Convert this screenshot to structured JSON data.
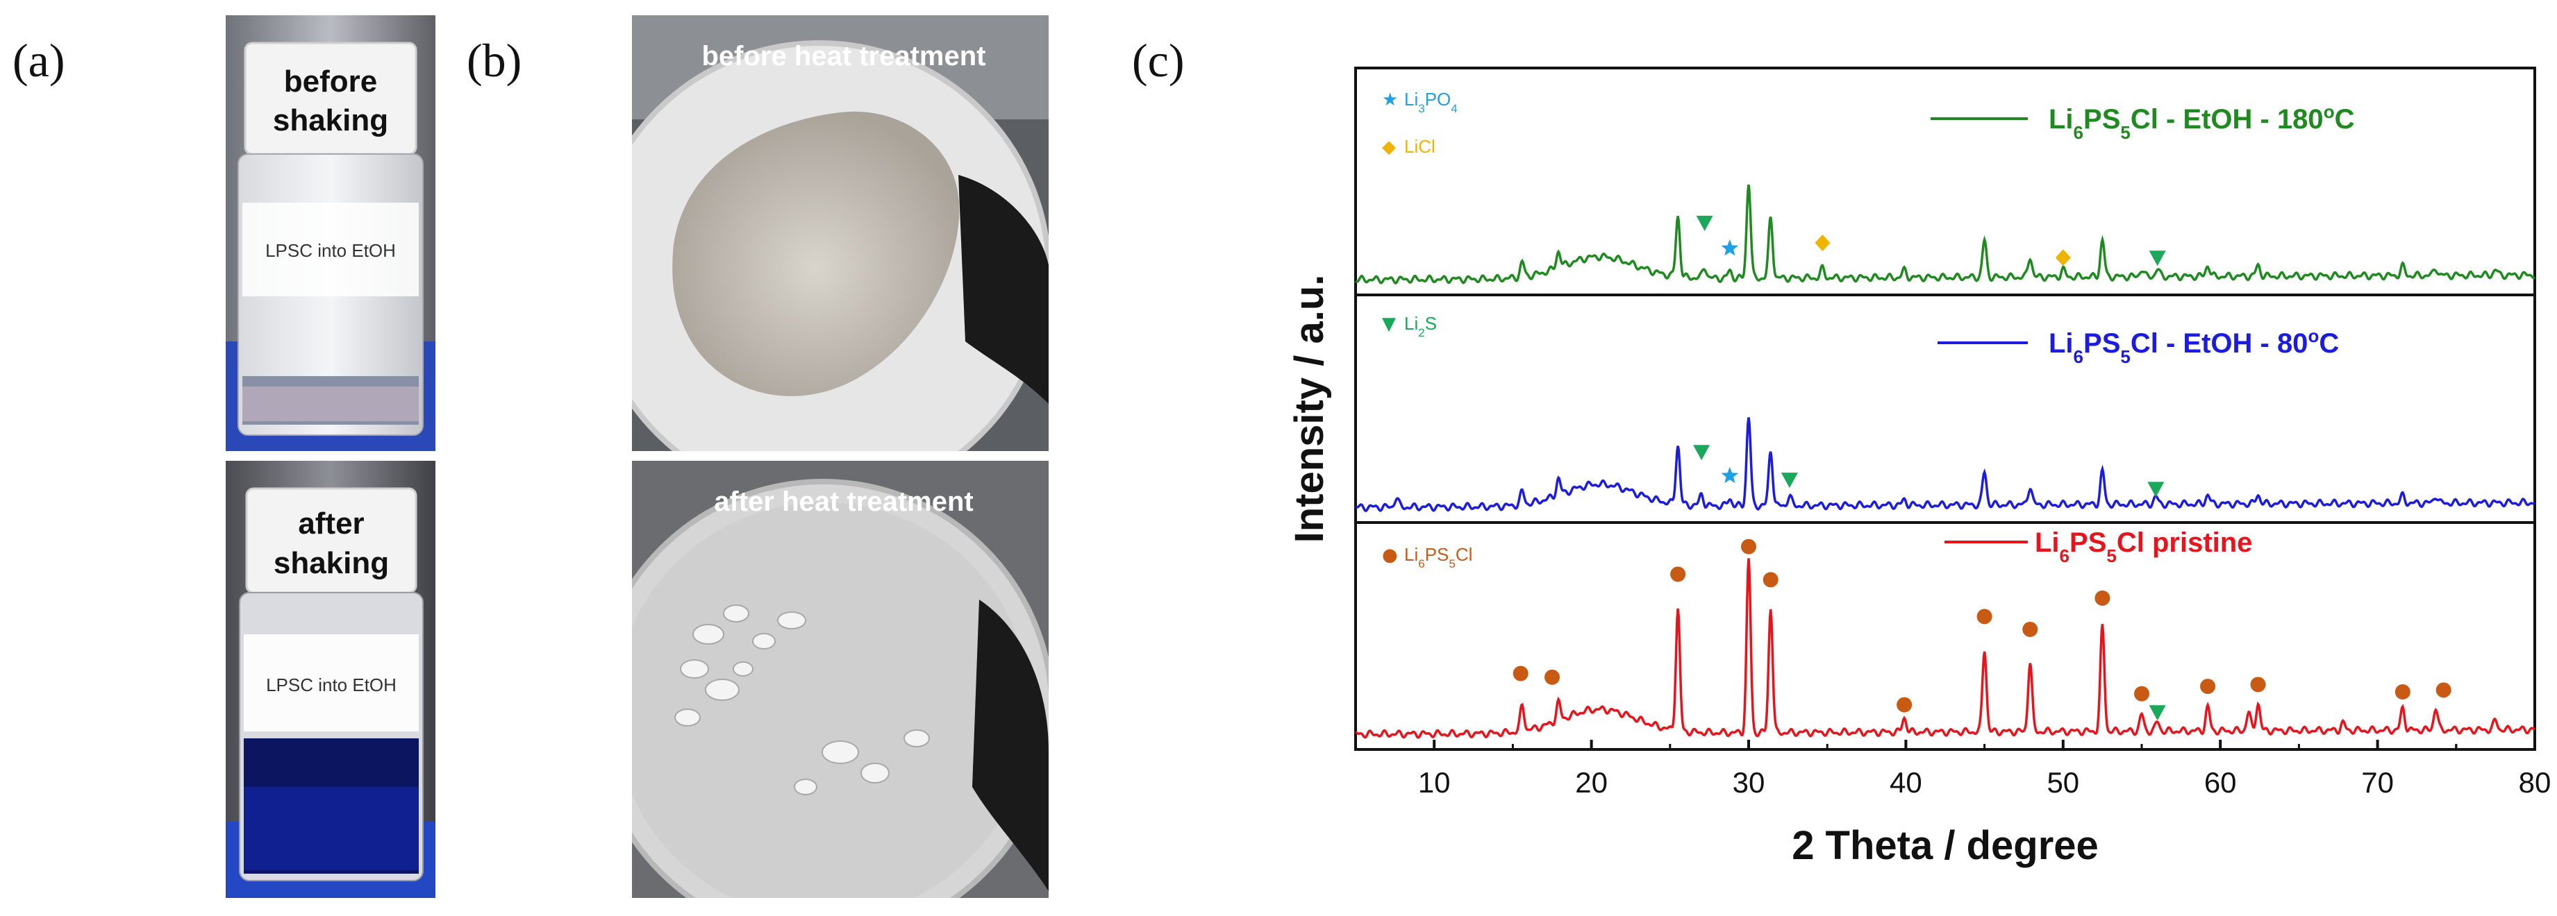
{
  "panels": {
    "a": {
      "label": "(a)",
      "top_photo": {
        "caption": [
          "before",
          "shaking"
        ],
        "vial_label": "LPSC into EtOH"
      },
      "bottom_photo": {
        "caption": [
          "after",
          "shaking"
        ],
        "vial_label": "LPSC into EtOH"
      }
    },
    "b": {
      "label": "(b)",
      "top_photo": {
        "caption": "before heat treatment"
      },
      "bottom_photo": {
        "caption": "after heat treatment"
      }
    },
    "c": {
      "label": "(c)"
    }
  },
  "colors": {
    "green": "#1f8a1f",
    "blue": "#1c1ce0",
    "red": "#e8141c",
    "li3po4": "#1ea0e6",
    "licl": "#f0b400",
    "li2s": "#1aa85a",
    "lpsc_marker": "#c85a14"
  },
  "chart_data": {
    "type": "line",
    "xlabel": "2 Theta / degree",
    "ylabel": "Intensity / a.u.",
    "xlim": [
      5,
      80
    ],
    "xticks": [
      10,
      20,
      30,
      40,
      50,
      60,
      70,
      80
    ],
    "series": [
      {
        "name": "Li6PS5Cl - EtOH - 180°C",
        "legend": {
          "base": "Li",
          "parts": [
            [
              "6",
              "sub"
            ],
            [
              "PS",
              ""
            ],
            [
              "5",
              "sub"
            ],
            [
              "Cl - EtOH - 180",
              ""
            ],
            [
              "o",
              "sup"
            ],
            [
              "C",
              ""
            ]
          ]
        },
        "color": "green",
        "baseline": 0.0,
        "hump": {
          "center": 20.5,
          "width": 3.2,
          "height": 0.12
        },
        "peaks": [
          [
            15.6,
            0.08
          ],
          [
            17.9,
            0.09
          ],
          [
            25.5,
            0.33
          ],
          [
            27.2,
            0.06
          ],
          [
            28.8,
            0.04
          ],
          [
            30.0,
            0.52
          ],
          [
            31.4,
            0.33
          ],
          [
            34.7,
            0.05
          ],
          [
            39.9,
            0.04
          ],
          [
            45.0,
            0.2
          ],
          [
            47.9,
            0.11
          ],
          [
            50.0,
            0.04
          ],
          [
            52.5,
            0.2
          ],
          [
            55.0,
            0.04
          ],
          [
            56.0,
            0.04
          ],
          [
            59.2,
            0.06
          ],
          [
            62.4,
            0.06
          ],
          [
            71.6,
            0.05
          ],
          [
            73.7,
            0.04
          ],
          [
            77.5,
            0.03
          ]
        ],
        "markers": [
          {
            "kind": "li2s",
            "x": 27.2,
            "y": 0.31
          },
          {
            "kind": "li3po4",
            "x": 28.8,
            "y": 0.17
          },
          {
            "kind": "licl",
            "x": 34.7,
            "y": 0.2
          },
          {
            "kind": "licl",
            "x": 50.0,
            "y": 0.12
          },
          {
            "kind": "li2s",
            "x": 56.0,
            "y": 0.12
          }
        ]
      },
      {
        "name": "Li6PS5Cl - EtOH - 80°C",
        "legend": {
          "base": "Li",
          "parts": [
            [
              "6",
              "sub"
            ],
            [
              "PS",
              ""
            ],
            [
              "5",
              "sub"
            ],
            [
              "Cl - EtOH - 80",
              ""
            ],
            [
              "o",
              "sup"
            ],
            [
              "C",
              ""
            ]
          ]
        },
        "color": "blue",
        "baseline": 0.0,
        "hump": {
          "center": 20.5,
          "width": 3.2,
          "height": 0.12
        },
        "peaks": [
          [
            7.6,
            0.05
          ],
          [
            15.6,
            0.07
          ],
          [
            17.9,
            0.09
          ],
          [
            25.5,
            0.32
          ],
          [
            27.0,
            0.06
          ],
          [
            28.8,
            0.04
          ],
          [
            30.0,
            0.48
          ],
          [
            31.4,
            0.3
          ],
          [
            32.6,
            0.05
          ],
          [
            39.9,
            0.03
          ],
          [
            45.0,
            0.18
          ],
          [
            47.9,
            0.1
          ],
          [
            52.5,
            0.18
          ],
          [
            55.9,
            0.04
          ],
          [
            59.2,
            0.05
          ],
          [
            62.4,
            0.05
          ],
          [
            71.6,
            0.04
          ],
          [
            73.7,
            0.04
          ]
        ],
        "markers": [
          {
            "kind": "li2s",
            "x": 27.0,
            "y": 0.3
          },
          {
            "kind": "li3po4",
            "x": 28.8,
            "y": 0.17
          },
          {
            "kind": "li2s",
            "x": 32.6,
            "y": 0.15
          },
          {
            "kind": "li2s",
            "x": 55.9,
            "y": 0.1
          }
        ]
      },
      {
        "name": "Li6PS5Cl pristine",
        "legend": {
          "base": "Li",
          "parts": [
            [
              "6",
              "sub"
            ],
            [
              "PS",
              ""
            ],
            [
              "5",
              "sub"
            ],
            [
              "Cl pristine",
              ""
            ]
          ]
        },
        "color": "red",
        "baseline": 0.0,
        "hump": {
          "center": 20.5,
          "width": 3.3,
          "height": 0.13
        },
        "peaks": [
          [
            15.6,
            0.14
          ],
          [
            17.9,
            0.1
          ],
          [
            25.5,
            0.66
          ],
          [
            30.0,
            0.94
          ],
          [
            31.4,
            0.68
          ],
          [
            39.9,
            0.08
          ],
          [
            45.0,
            0.45
          ],
          [
            47.9,
            0.38
          ],
          [
            52.5,
            0.57
          ],
          [
            55.0,
            0.09
          ],
          [
            56.0,
            0.05
          ],
          [
            59.2,
            0.13
          ],
          [
            61.8,
            0.1
          ],
          [
            62.4,
            0.15
          ],
          [
            67.8,
            0.04
          ],
          [
            71.6,
            0.12
          ],
          [
            73.7,
            0.12
          ],
          [
            77.5,
            0.05
          ]
        ],
        "markers": [
          {
            "kind": "lpsc",
            "x": 15.5,
            "y": 0.33
          },
          {
            "kind": "lpsc",
            "x": 17.5,
            "y": 0.31
          },
          {
            "kind": "lpsc",
            "x": 25.5,
            "y": 0.87
          },
          {
            "kind": "lpsc",
            "x": 30.0,
            "y": 1.02
          },
          {
            "kind": "lpsc",
            "x": 31.4,
            "y": 0.84
          },
          {
            "kind": "lpsc",
            "x": 39.9,
            "y": 0.16
          },
          {
            "kind": "lpsc",
            "x": 45.0,
            "y": 0.64
          },
          {
            "kind": "lpsc",
            "x": 47.9,
            "y": 0.57
          },
          {
            "kind": "lpsc",
            "x": 52.5,
            "y": 0.74
          },
          {
            "kind": "lpsc",
            "x": 55.0,
            "y": 0.22
          },
          {
            "kind": "lpsc",
            "x": 59.2,
            "y": 0.26
          },
          {
            "kind": "lpsc",
            "x": 62.4,
            "y": 0.27
          },
          {
            "kind": "lpsc",
            "x": 71.6,
            "y": 0.23
          },
          {
            "kind": "lpsc",
            "x": 74.2,
            "y": 0.24
          },
          {
            "kind": "li2s",
            "x": 56.0,
            "y": 0.12
          }
        ]
      }
    ],
    "marker_legend": [
      {
        "kind": "li3po4",
        "symbol": "★",
        "text": "Li",
        "parts": [
          [
            "3",
            "sub"
          ],
          [
            "PO",
            ""
          ],
          [
            "4",
            "sub"
          ]
        ]
      },
      {
        "kind": "licl",
        "symbol": "◆",
        "text": "LiCl",
        "parts": []
      },
      {
        "kind": "li2s",
        "symbol": "▼",
        "text": "Li",
        "parts": [
          [
            "2",
            "sub"
          ],
          [
            "S",
            ""
          ]
        ]
      },
      {
        "kind": "lpsc",
        "symbol": "●",
        "text": "Li",
        "parts": [
          [
            "6",
            "sub"
          ],
          [
            "PS",
            ""
          ],
          [
            "5",
            "sub"
          ],
          [
            "Cl",
            ""
          ]
        ]
      }
    ]
  }
}
